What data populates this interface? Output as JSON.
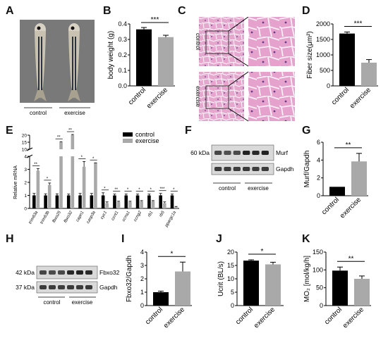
{
  "panel_labels": [
    "A",
    "B",
    "C",
    "D",
    "E",
    "F",
    "G",
    "H",
    "I",
    "J",
    "K"
  ],
  "panelA": {
    "labels": [
      "control",
      "exercise"
    ]
  },
  "panelC": {
    "row_labels": [
      "control",
      "exercise"
    ]
  },
  "blots": {
    "F": {
      "markers": [
        "60 kDa"
      ],
      "bands": [
        "Murf",
        "Gapdh"
      ],
      "groups": [
        "control",
        "exercise"
      ]
    },
    "H": {
      "markers": [
        "42 kDa",
        "37 kDa"
      ],
      "bands": [
        "Fbxo32",
        "Gapdh"
      ],
      "groups": [
        "control",
        "exercise"
      ]
    }
  },
  "chart_data": [
    {
      "panel": "B",
      "type": "bar",
      "categories": [
        "control",
        "exercise"
      ],
      "values": [
        0.365,
        0.315
      ],
      "errors": [
        0.012,
        0.012
      ],
      "ylabel": "body weight (g)",
      "ylim": [
        0,
        0.4
      ],
      "yticks": [
        "0.0",
        "0.1",
        "0.2",
        "0.3",
        "0.4"
      ],
      "significance": "***",
      "colors": [
        "#000000",
        "#a9a9a9"
      ]
    },
    {
      "panel": "D",
      "type": "bar",
      "categories": [
        "control",
        "exercise"
      ],
      "values": [
        1690,
        750
      ],
      "errors": [
        50,
        100
      ],
      "ylabel": "Fiber size(μm²)",
      "ylim": [
        0,
        2000
      ],
      "yticks": [
        "0",
        "500",
        "1000",
        "1500",
        "2000"
      ],
      "significance": "***",
      "colors": [
        "#000000",
        "#a9a9a9"
      ]
    },
    {
      "panel": "E",
      "type": "bar",
      "ylabel": "Relative mRNA",
      "legend": [
        "control",
        "exercise"
      ],
      "legend_position": "top-right",
      "categories": [
        "trim63a",
        "trim63b",
        "fbxo25",
        "fbxo32",
        "capn1",
        "casp3a",
        "cyc1",
        "ccnt1",
        "ccna1",
        "ccng2",
        "rb1",
        "rb5",
        "ppargc1a"
      ],
      "series": [
        {
          "name": "control",
          "values": [
            1.0,
            1.0,
            1.0,
            1.0,
            1.0,
            1.0,
            1.0,
            1.0,
            1.0,
            1.0,
            1.0,
            1.0,
            1.0
          ],
          "errors": [
            0.15,
            0.12,
            0.12,
            0.1,
            0.15,
            0.15,
            0.2,
            0.1,
            0.1,
            0.1,
            0.1,
            0.15,
            0.1
          ]
        },
        {
          "name": "exercise",
          "values": [
            2.9,
            1.8,
            15,
            20,
            3.2,
            3.5,
            0.4,
            0.5,
            0.5,
            0.55,
            0.55,
            0.4,
            0.1
          ],
          "errors": [
            0.15,
            0.15,
            0.4,
            0.5,
            0.4,
            0.7,
            0.1,
            0.05,
            0.05,
            0.05,
            0.05,
            0.1,
            0.05
          ]
        }
      ],
      "significance": [
        "**",
        "*",
        "**",
        "**",
        "*",
        "*",
        "*",
        "**",
        "*",
        "*",
        "*",
        "***",
        "*"
      ],
      "ylim_lower": [
        0,
        4
      ],
      "yticks_lower": [
        "0",
        "1",
        "2",
        "3",
        "4"
      ],
      "ylim_upper": [
        10,
        20
      ],
      "yticks_upper": [
        "10",
        "15",
        "20"
      ],
      "colors": [
        "#000000",
        "#a9a9a9"
      ]
    },
    {
      "panel": "G",
      "type": "bar",
      "categories": [
        "control",
        "exercise"
      ],
      "values": [
        1.0,
        3.85
      ],
      "errors": [
        0,
        0.9
      ],
      "ylabel": "Murf/Gapdh",
      "ylim": [
        0,
        6
      ],
      "yticks": [
        "0",
        "2",
        "4",
        "6"
      ],
      "significance": "**",
      "colors": [
        "#000000",
        "#a9a9a9"
      ]
    },
    {
      "panel": "I",
      "type": "bar",
      "categories": [
        "control",
        "exercise"
      ],
      "values": [
        1.0,
        2.55
      ],
      "errors": [
        0.08,
        0.7
      ],
      "ylabel": "Fbxo32/Gapdh",
      "ylim": [
        0,
        4
      ],
      "yticks": [
        "0",
        "1",
        "2",
        "3",
        "4"
      ],
      "significance": "*",
      "colors": [
        "#000000",
        "#a9a9a9"
      ]
    },
    {
      "panel": "J",
      "type": "bar",
      "categories": [
        "control",
        "exercise"
      ],
      "values": [
        16.8,
        15.4
      ],
      "errors": [
        0.3,
        0.8
      ],
      "ylabel": "Ucrit (BL/s)",
      "ylim": [
        0,
        20
      ],
      "yticks": [
        "0",
        "5",
        "10",
        "15",
        "20"
      ],
      "significance": "*",
      "colors": [
        "#000000",
        "#a9a9a9"
      ]
    },
    {
      "panel": "K",
      "type": "bar",
      "categories": [
        "control",
        "exercise"
      ],
      "values": [
        98,
        75
      ],
      "errors": [
        10,
        8
      ],
      "ylabel": "MO₂ [mol/kg/h]",
      "ylim": [
        0,
        150
      ],
      "yticks": [
        "0",
        "50",
        "100",
        "150"
      ],
      "significance": "**",
      "colors": [
        "#000000",
        "#a9a9a9"
      ]
    }
  ]
}
